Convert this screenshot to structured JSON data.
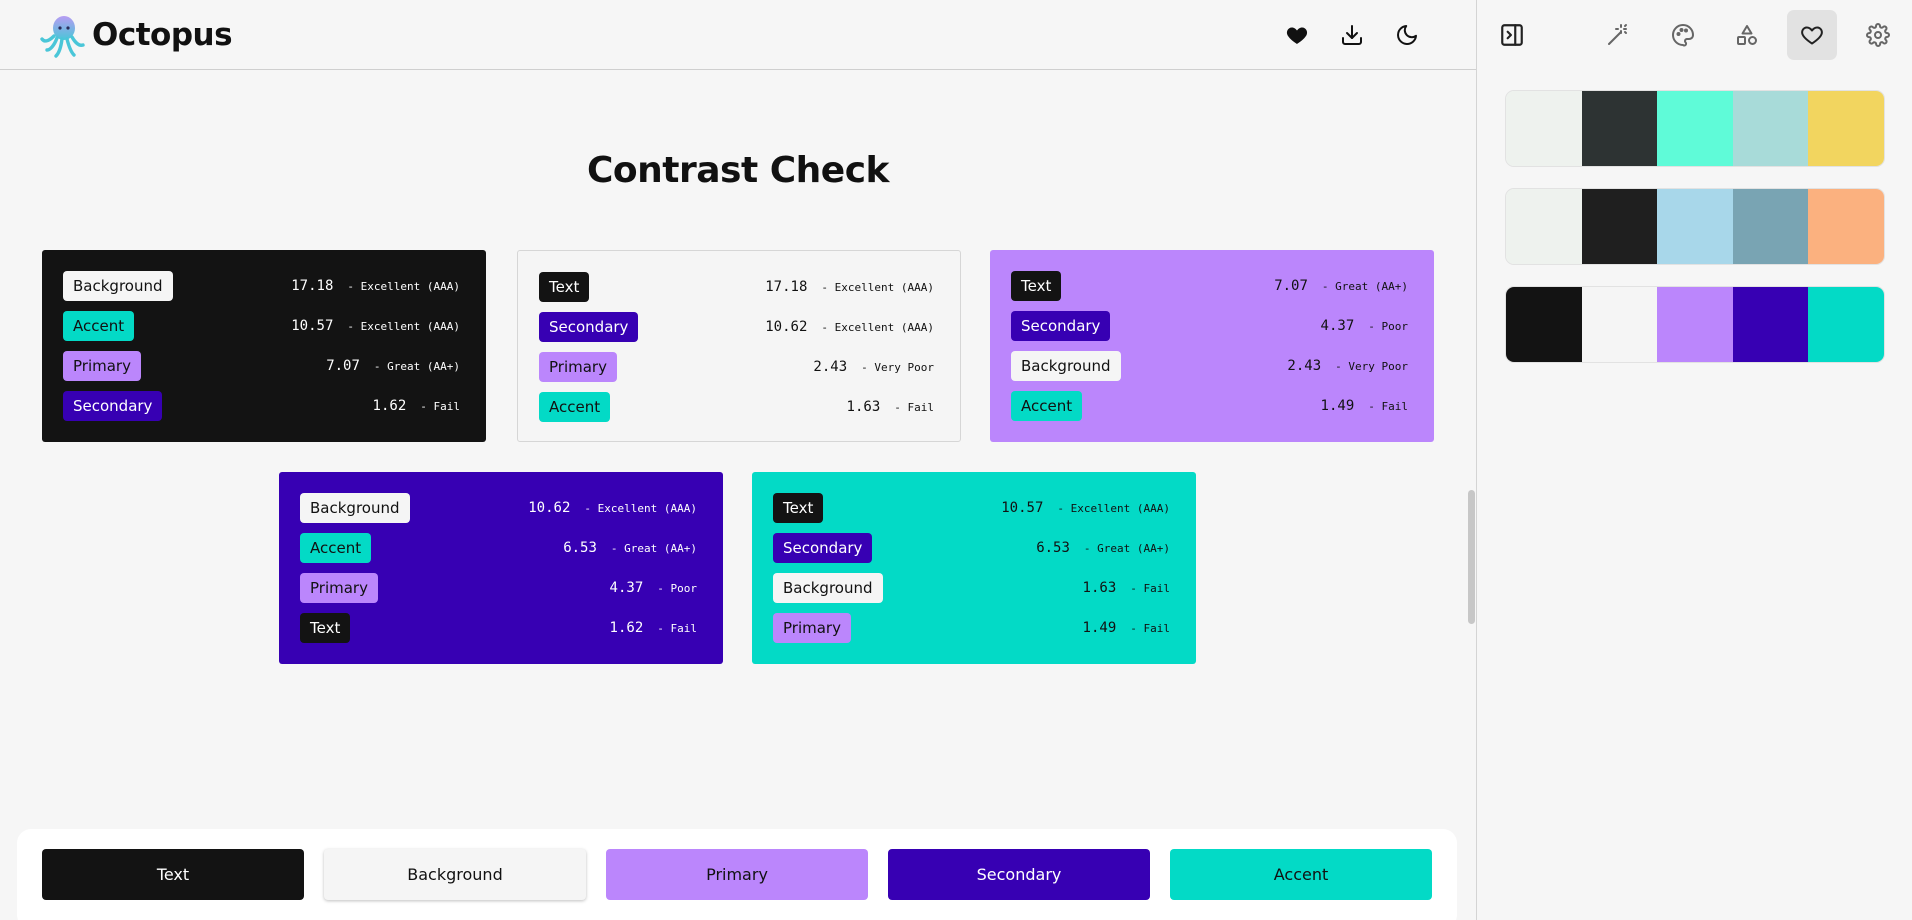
{
  "app": {
    "name": "Octopus"
  },
  "header_icons": [
    "heart-icon",
    "download-icon",
    "moon-icon"
  ],
  "sidebar": {
    "icons": [
      "panel-toggle-icon",
      "magic-wand-icon",
      "palette-icon",
      "shapes-icon",
      "heart-icon",
      "gear-icon"
    ],
    "active_icon": "heart-icon",
    "palettes": [
      [
        "#eef2ee",
        "#2d3333",
        "#5ffbd8",
        "#a8dbd9",
        "#f2d55f"
      ],
      [
        "#eef2ee",
        "#1f1f1f",
        "#a8d7ea",
        "#79a4b3",
        "#fbb17f"
      ],
      [
        "#131313",
        "#f5f5f5",
        "#bb86fc",
        "#3700b3",
        "#03dac6"
      ]
    ]
  },
  "main": {
    "title": "Contrast Check",
    "colors": {
      "text": "#131313",
      "background": "#f5f5f5",
      "primary": "#bb86fc",
      "secondary": "#3700b3",
      "accent": "#03dac6"
    },
    "cards": [
      {
        "base": "text",
        "rows": [
          {
            "chip": "Background",
            "role": "background",
            "ratio": "17.18",
            "verdict": "- Excellent (AAA)"
          },
          {
            "chip": "Accent",
            "role": "accent",
            "ratio": "10.57",
            "verdict": "- Excellent (AAA)"
          },
          {
            "chip": "Primary",
            "role": "primary",
            "ratio": "7.07",
            "verdict": "- Great (AA+)"
          },
          {
            "chip": "Secondary",
            "role": "secondary",
            "ratio": "1.62",
            "verdict": "- Fail"
          }
        ]
      },
      {
        "base": "background",
        "rows": [
          {
            "chip": "Text",
            "role": "text",
            "ratio": "17.18",
            "verdict": "- Excellent (AAA)"
          },
          {
            "chip": "Secondary",
            "role": "secondary",
            "ratio": "10.62",
            "verdict": "- Excellent (AAA)"
          },
          {
            "chip": "Primary",
            "role": "primary",
            "ratio": "2.43",
            "verdict": "- Very Poor"
          },
          {
            "chip": "Accent",
            "role": "accent",
            "ratio": "1.63",
            "verdict": "- Fail"
          }
        ]
      },
      {
        "base": "primary",
        "rows": [
          {
            "chip": "Text",
            "role": "text",
            "ratio": "7.07",
            "verdict": "- Great (AA+)"
          },
          {
            "chip": "Secondary",
            "role": "secondary",
            "ratio": "4.37",
            "verdict": "- Poor"
          },
          {
            "chip": "Background",
            "role": "background",
            "ratio": "2.43",
            "verdict": "- Very Poor"
          },
          {
            "chip": "Accent",
            "role": "accent",
            "ratio": "1.49",
            "verdict": "- Fail"
          }
        ]
      },
      {
        "base": "secondary",
        "rows": [
          {
            "chip": "Background",
            "role": "background",
            "ratio": "10.62",
            "verdict": "- Excellent (AAA)"
          },
          {
            "chip": "Accent",
            "role": "accent",
            "ratio": "6.53",
            "verdict": "- Great (AA+)"
          },
          {
            "chip": "Primary",
            "role": "primary",
            "ratio": "4.37",
            "verdict": "- Poor"
          },
          {
            "chip": "Text",
            "role": "text",
            "ratio": "1.62",
            "verdict": "- Fail"
          }
        ]
      },
      {
        "base": "accent",
        "rows": [
          {
            "chip": "Text",
            "role": "text",
            "ratio": "10.57",
            "verdict": "- Excellent (AAA)"
          },
          {
            "chip": "Secondary",
            "role": "secondary",
            "ratio": "6.53",
            "verdict": "- Great (AA+)"
          },
          {
            "chip": "Background",
            "role": "background",
            "ratio": "1.63",
            "verdict": "- Fail"
          },
          {
            "chip": "Primary",
            "role": "primary",
            "ratio": "1.49",
            "verdict": "- Fail"
          }
        ]
      }
    ]
  },
  "bottom_bar": {
    "buttons": [
      {
        "label": "Text",
        "role": "text"
      },
      {
        "label": "Background",
        "role": "background"
      },
      {
        "label": "Primary",
        "role": "primary"
      },
      {
        "label": "Secondary",
        "role": "secondary"
      },
      {
        "label": "Accent",
        "role": "accent"
      }
    ]
  }
}
